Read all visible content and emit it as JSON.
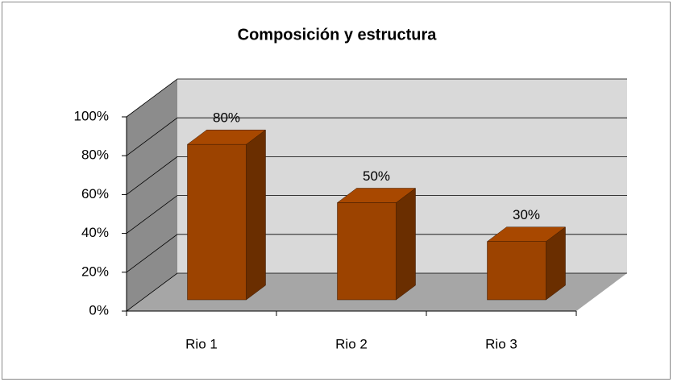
{
  "chart_data": {
    "type": "bar3d",
    "title": "Composición y estructura",
    "categories": [
      "Rio 1",
      "Rio 2",
      "Rio 3"
    ],
    "values": [
      80,
      50,
      30
    ],
    "value_labels": [
      "80%",
      "50%",
      "30%"
    ],
    "color": "#9c4300",
    "ylim": [
      0,
      100
    ],
    "yticks": [
      {
        "value": 0,
        "label": "0%"
      },
      {
        "value": 20,
        "label": "20%"
      },
      {
        "value": 40,
        "label": "40%"
      },
      {
        "value": 60,
        "label": "60%"
      },
      {
        "value": 80,
        "label": "80%"
      },
      {
        "value": 100,
        "label": "100%"
      }
    ],
    "grid": true
  }
}
